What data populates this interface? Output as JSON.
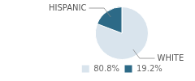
{
  "chart_data": {
    "type": "pie",
    "categories": [
      "WHITE",
      "HISPANIC"
    ],
    "values": [
      80.8,
      19.2
    ],
    "value_labels": [
      "80.8%",
      "19.2%"
    ],
    "colors": [
      "#d9e4ed",
      "#2d6a87"
    ],
    "legend": "bottom"
  }
}
